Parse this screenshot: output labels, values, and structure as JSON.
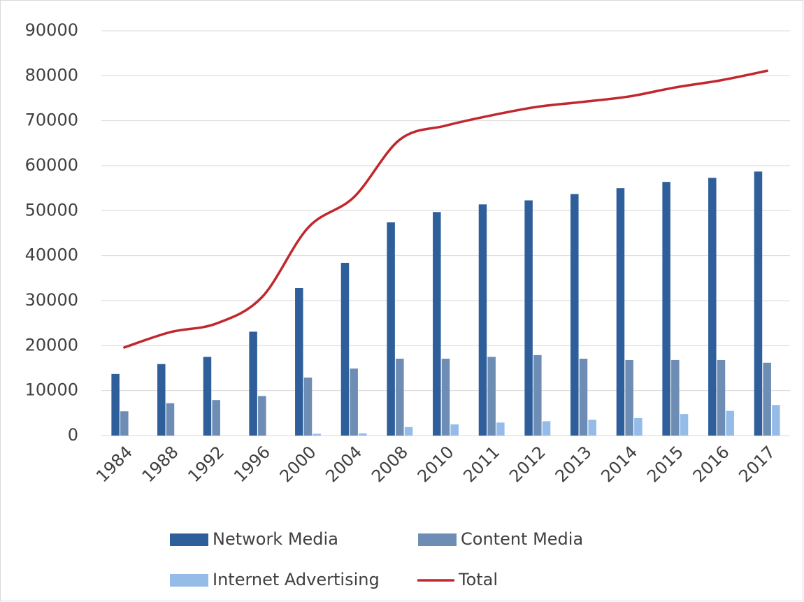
{
  "chart_data": {
    "type": "bar",
    "categories": [
      "1984",
      "1988",
      "1992",
      "1996",
      "2000",
      "2004",
      "2008",
      "2010",
      "2011",
      "2012",
      "2013",
      "2014",
      "2015",
      "2016",
      "2017"
    ],
    "series": [
      {
        "name": "Network Media",
        "color": "#2f5f9a",
        "type": "bar",
        "values": [
          13700,
          15900,
          17500,
          23100,
          32800,
          38400,
          47400,
          49700,
          51400,
          52300,
          53700,
          55000,
          56400,
          57300,
          58700
        ]
      },
      {
        "name": "Content Media",
        "color": "#6d8db4",
        "type": "bar",
        "values": [
          5400,
          7200,
          7900,
          8800,
          12900,
          14900,
          17100,
          17100,
          17500,
          17900,
          17100,
          16800,
          16800,
          16800,
          16200
        ]
      },
      {
        "name": "Internet Advertising",
        "color": "#95bce8",
        "type": "bar",
        "values": [
          0,
          0,
          0,
          0,
          400,
          500,
          1900,
          2500,
          2900,
          3200,
          3500,
          3900,
          4800,
          5500,
          6800
        ]
      },
      {
        "name": "Total",
        "color": "#c0282d",
        "type": "line",
        "values": [
          19600,
          23000,
          24900,
          30800,
          46200,
          53000,
          65800,
          68900,
          71200,
          73100,
          74200,
          75400,
          77400,
          79000,
          81100
        ]
      }
    ],
    "ylim": [
      0,
      90000
    ],
    "yticks": [
      0,
      10000,
      20000,
      30000,
      40000,
      50000,
      60000,
      70000,
      80000,
      90000
    ],
    "grid": true,
    "legend": "bottom"
  }
}
